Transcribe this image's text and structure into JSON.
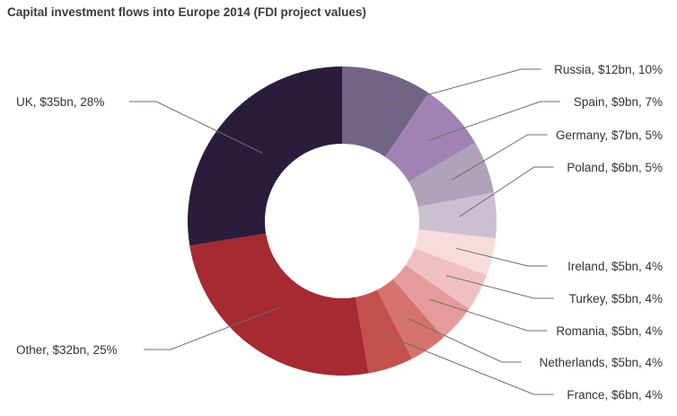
{
  "chart_data": {
    "type": "pie",
    "title": "Capital investment flows into Europe 2014 (FDI project values)",
    "unit": "$bn",
    "slices": [
      {
        "name": "Russia",
        "value": 12,
        "percent": 10,
        "label": "Russia, $12bn, 10%",
        "color": "#716485"
      },
      {
        "name": "Spain",
        "value": 9,
        "percent": 7,
        "label": "Spain, $9bn, 7%",
        "color": "#a083b4"
      },
      {
        "name": "Germany",
        "value": 7,
        "percent": 5,
        "label": "Germany, $7bn, 5%",
        "color": "#aea3b8"
      },
      {
        "name": "Poland",
        "value": 6,
        "percent": 5,
        "label": "Poland, $6bn, 5%",
        "color": "#cbc0d2"
      },
      {
        "name": "Ireland",
        "value": 5,
        "percent": 4,
        "label": "Ireland, $5bn, 4%",
        "color": "#f8dcdc"
      },
      {
        "name": "Turkey",
        "value": 5,
        "percent": 4,
        "label": "Turkey, $5bn, 4%",
        "color": "#f0c0c0"
      },
      {
        "name": "Romania",
        "value": 5,
        "percent": 4,
        "label": "Romania, $5bn, 4%",
        "color": "#e59b9b"
      },
      {
        "name": "Netherlands",
        "value": 5,
        "percent": 4,
        "label": "Netherlands, $5bn, 4%",
        "color": "#d6736f"
      },
      {
        "name": "France",
        "value": 6,
        "percent": 4,
        "label": "France, $6bn, 4%",
        "color": "#c4504e"
      },
      {
        "name": "Other",
        "value": 32,
        "percent": 25,
        "label": "Other, $32bn, 25%",
        "color": "#a52a32"
      },
      {
        "name": "UK",
        "value": 35,
        "percent": 28,
        "label": "UK, $35bn, 28%",
        "color": "#2a1d3c"
      }
    ],
    "legend": "none",
    "inner_radius_ratio": 0.5
  }
}
